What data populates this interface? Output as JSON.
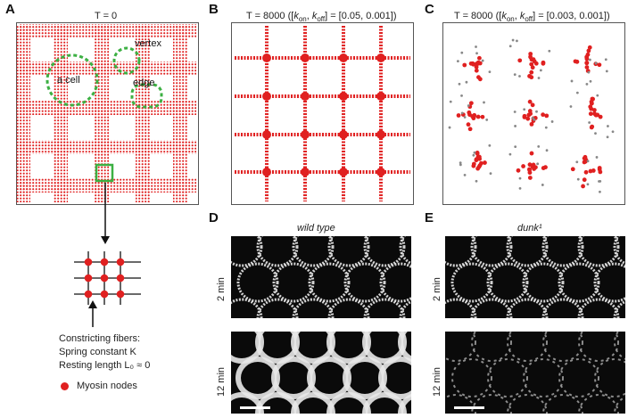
{
  "panels": {
    "A": {
      "label": "A",
      "title": "T = 0",
      "annotations": {
        "cell": "a cell",
        "vertex": "vertex",
        "edge": "edge"
      },
      "legend": {
        "line1": "Constricting fibers:",
        "line2": "Spring constant K",
        "line3": "Resting length L₀ ≈ 0",
        "myosin": "Myosin nodes"
      }
    },
    "B": {
      "label": "B",
      "title": "T = 8000 ([k_on, k_off] = [0.05, 0.001])"
    },
    "C": {
      "label": "C",
      "title": "T = 8000 ([k_on, k_off] = [0.003, 0.001])"
    },
    "D": {
      "label": "D",
      "title": "wild type",
      "row1": "2 min",
      "row2": "12 min"
    },
    "E": {
      "label": "E",
      "title": "dunk¹",
      "row1": "2 min",
      "row2": "12 min"
    }
  },
  "colors": {
    "myosin": "#e02020",
    "green": "#3cb043",
    "edge": "#555555"
  }
}
